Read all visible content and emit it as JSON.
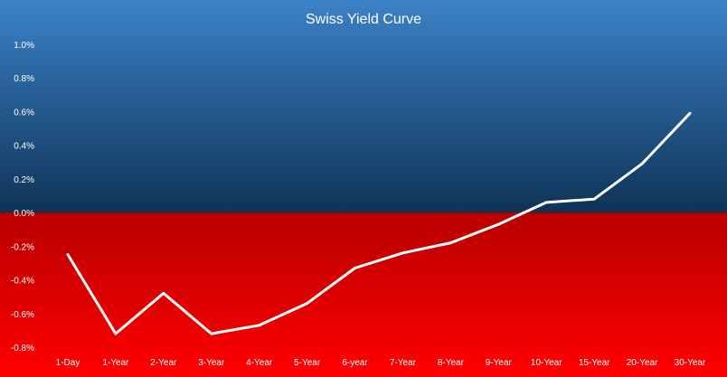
{
  "chart_data": {
    "type": "line",
    "title": "Swiss Yield Curve",
    "xlabel": "",
    "ylabel": "",
    "categories": [
      "1-Day",
      "1-Year",
      "2-Year",
      "3-Year",
      "4-Year",
      "5-Year",
      "6-year",
      "7-Year",
      "8-Year",
      "9-Year",
      "10-Year",
      "15-Year",
      "20-Year",
      "30-Year"
    ],
    "y_tick_labels": [
      "1.0%",
      "0.8%",
      "0.6%",
      "0.4%",
      "0.2%",
      "0.0%",
      "-0.2%",
      "-0.4%",
      "-0.6%",
      "-0.8%"
    ],
    "y_ticks": [
      1.0,
      0.8,
      0.6,
      0.4,
      0.2,
      0.0,
      -0.2,
      -0.4,
      -0.6,
      -0.8
    ],
    "ylim": [
      -0.8,
      1.0
    ],
    "grid": false,
    "legend": "none",
    "series": [
      {
        "values": [
          -0.25,
          -0.72,
          -0.48,
          -0.72,
          -0.67,
          -0.54,
          -0.33,
          -0.24,
          -0.18,
          -0.07,
          0.06,
          0.08,
          0.29,
          0.59
        ]
      }
    ],
    "colors": {
      "line": "#ffffff",
      "positive_bg_top": "#3b82c8",
      "positive_bg_bottom": "#0f3357",
      "negative_bg_top": "#b80000",
      "negative_bg_bottom": "#ff0000",
      "text": "#ffffff"
    }
  }
}
